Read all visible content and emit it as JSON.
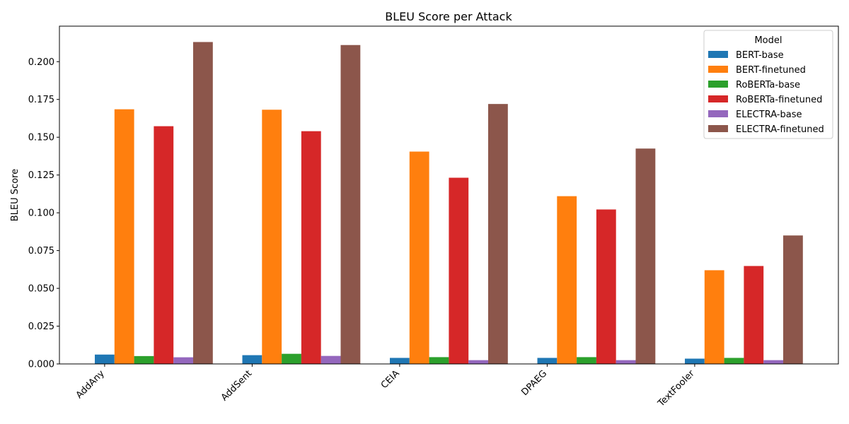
{
  "chart_data": {
    "type": "bar",
    "title": "BLEU Score per Attack",
    "xlabel": "",
    "ylabel": "BLEU Score",
    "categories": [
      "AddAny",
      "AddSent",
      "CEIA",
      "DPAEG",
      "TextFooler"
    ],
    "ylim": [
      0,
      0.2235
    ],
    "yticks": [
      "0.000",
      "0.025",
      "0.050",
      "0.075",
      "0.100",
      "0.125",
      "0.150",
      "0.175",
      "0.200"
    ],
    "grid": false,
    "legend": {
      "title": "Model",
      "placement": "top-right"
    },
    "series": [
      {
        "name": "BERT-base",
        "color": "#1f77b4",
        "values": [
          0.0062,
          0.0058,
          0.004,
          0.004,
          0.0035
        ]
      },
      {
        "name": "BERT-finetuned",
        "color": "#ff7f0e",
        "values": [
          0.1685,
          0.1682,
          0.1405,
          0.111,
          0.062
        ]
      },
      {
        "name": "RoBERTa-base",
        "color": "#2ca02c",
        "values": [
          0.0052,
          0.0067,
          0.0045,
          0.0045,
          0.004
        ]
      },
      {
        "name": "RoBERTa-finetuned",
        "color": "#d62728",
        "values": [
          0.1573,
          0.154,
          0.1232,
          0.1022,
          0.0648
        ]
      },
      {
        "name": "ELECTRA-base",
        "color": "#9467bd",
        "values": [
          0.0044,
          0.0053,
          0.0025,
          0.0025,
          0.0025
        ]
      },
      {
        "name": "ELECTRA-finetuned",
        "color": "#8c564b",
        "values": [
          0.213,
          0.211,
          0.172,
          0.1425,
          0.085
        ]
      }
    ]
  }
}
